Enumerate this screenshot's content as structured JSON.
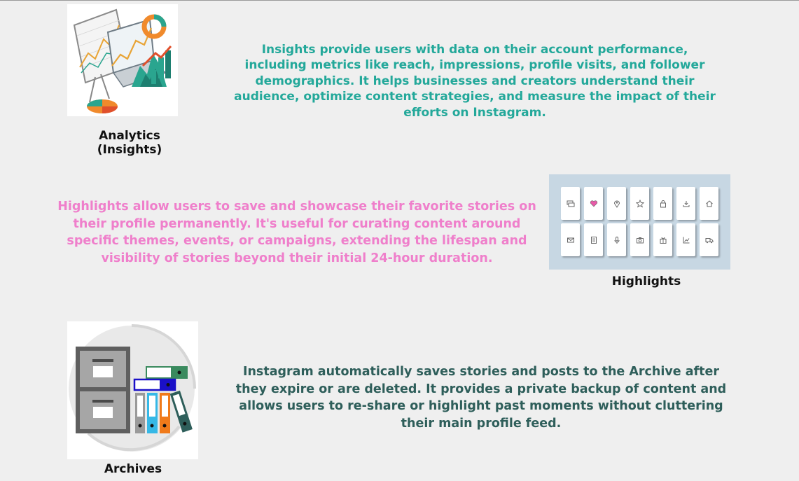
{
  "sections": {
    "analytics": {
      "caption": "Analytics (Insights)",
      "description": "Insights provide users with data on their account performance, including metrics like reach, impressions, profile visits, and follower demographics. It helps businesses and creators understand their audience, optimize content strategies, and measure the impact of their efforts on Instagram.",
      "image_icon": "analytics-dashboard-illustration",
      "text_color": "#23a89a"
    },
    "highlights": {
      "caption": "Highlights",
      "description": "Highlights allow users to save and showcase their favorite stories on their profile permanently. It's useful for curating content around specific themes, events, or campaigns, extending the lifespan and visibility of stories beyond their initial 24-hour duration.",
      "text_color": "#ef7fcb",
      "icons_row1": [
        "chat-icon",
        "heart-icon",
        "location-pin-icon",
        "star-icon",
        "lock-icon",
        "download-icon",
        "home-icon"
      ],
      "icons_row2": [
        "mail-icon",
        "document-icon",
        "microphone-icon",
        "camera-icon",
        "gift-icon",
        "chart-icon",
        "truck-icon"
      ]
    },
    "archives": {
      "caption": "Archives",
      "description": "Instagram automatically saves stories and posts to the Archive after they expire or are deleted. It provides a private backup of content and allows users to re-share or highlight past moments without cluttering their main profile feed.",
      "image_icon": "filing-cabinet-binders-illustration",
      "text_color": "#2e5e5a"
    }
  }
}
